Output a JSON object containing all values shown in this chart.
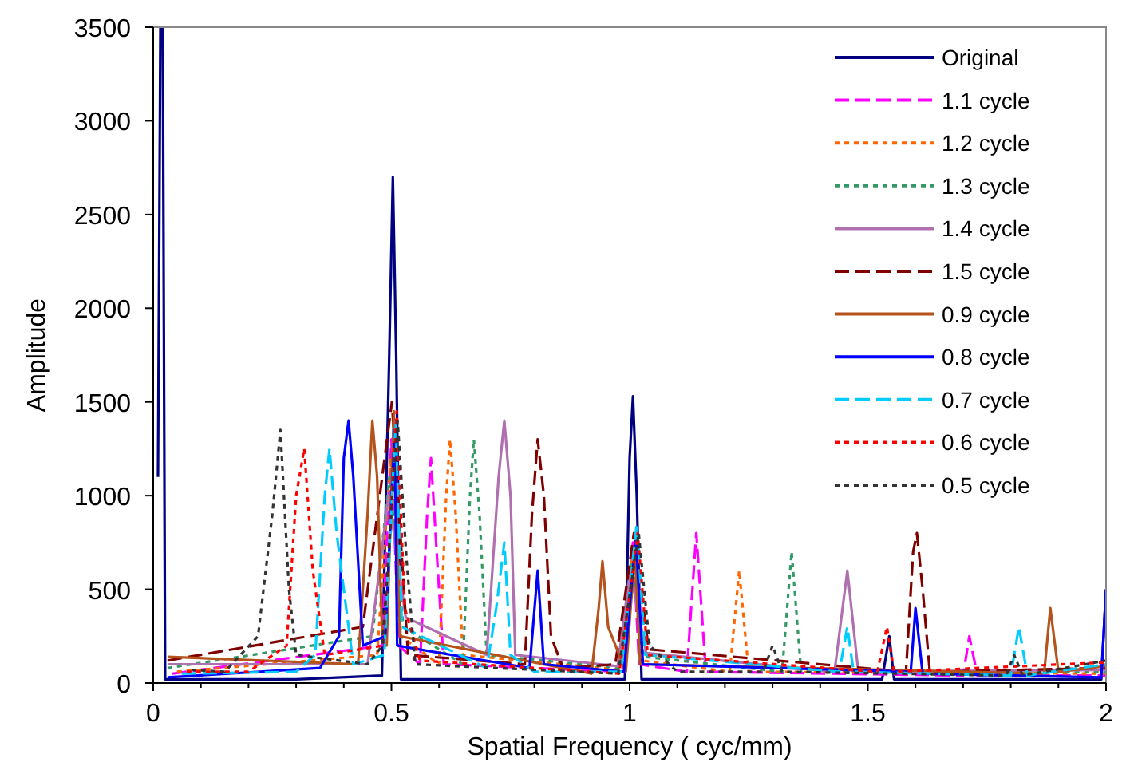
{
  "chart_data": {
    "type": "line",
    "xlabel": "Spatial Frequency ( cyc/mm)",
    "ylabel": "Amplitude",
    "xlim": [
      0,
      2
    ],
    "xticks": [
      0,
      {
        "value": 0.1,
        "label": null
      },
      {
        "value": 0.2,
        "label": null
      },
      {
        "value": 0.3,
        "label": null
      },
      {
        "value": 0.4,
        "label": null
      },
      0.5,
      {
        "value": 0.6,
        "label": null
      },
      {
        "value": 0.7,
        "label": null
      },
      {
        "value": 0.8,
        "label": null
      },
      {
        "value": 0.9,
        "label": null
      },
      1,
      {
        "value": 1.1,
        "label": null
      },
      {
        "value": 1.2,
        "label": null
      },
      {
        "value": 1.3,
        "label": null
      },
      {
        "value": 1.4,
        "label": null
      },
      1.5,
      {
        "value": 1.6,
        "label": null
      },
      {
        "value": 1.7,
        "label": null
      },
      {
        "value": 1.8,
        "label": null
      },
      {
        "value": 1.9,
        "label": null
      },
      2
    ],
    "ylim": [
      0,
      3500
    ],
    "yticks": [
      0,
      500,
      1000,
      1500,
      2000,
      2500,
      3000,
      3500
    ],
    "grid": false,
    "legend": "top right",
    "marker": "none",
    "series": [
      {
        "name": "Original",
        "color": "#000080",
        "line_style": "solid",
        "x": [
          0.01,
          0.015,
          0.02,
          0.025,
          0.3,
          0.48,
          0.495,
          0.503,
          0.51,
          0.52,
          0.99,
          1.0,
          1.007,
          1.015,
          1.025,
          1.53,
          1.545,
          1.555,
          1.99,
          2.0
        ],
        "values": [
          1100,
          3500,
          3500,
          20,
          20,
          40,
          1700,
          2700,
          1750,
          20,
          20,
          1200,
          1530,
          1000,
          20,
          20,
          250,
          20,
          20,
          500
        ]
      },
      {
        "name": "1.1 cycle",
        "color": "#ff00ff",
        "line_style": "dashed",
        "x": [
          0.04,
          0.48,
          0.5,
          0.515,
          0.56,
          0.575,
          0.583,
          0.595,
          0.61,
          0.99,
          1.007,
          1.02,
          1.12,
          1.14,
          1.16,
          1.7,
          1.713,
          1.73,
          2.0
        ],
        "values": [
          50,
          200,
          1300,
          200,
          100,
          900,
          1200,
          700,
          100,
          60,
          750,
          100,
          60,
          800,
          60,
          40,
          250,
          40,
          40
        ]
      },
      {
        "name": "1.2 cycle",
        "color": "#ff6600",
        "line_style": "dotted",
        "x": [
          0.05,
          0.47,
          0.498,
          0.52,
          0.6,
          0.615,
          0.623,
          0.635,
          0.65,
          0.985,
          1.005,
          1.025,
          1.21,
          1.23,
          1.25,
          2.0
        ],
        "values": [
          60,
          150,
          1200,
          250,
          100,
          1000,
          1300,
          900,
          150,
          70,
          700,
          120,
          60,
          600,
          60,
          50
        ]
      },
      {
        "name": "1.3 cycle",
        "color": "#339966",
        "line_style": "dotted",
        "x": [
          0.03,
          0.46,
          0.496,
          0.525,
          0.65,
          0.665,
          0.673,
          0.685,
          0.7,
          0.98,
          1.003,
          1.03,
          1.32,
          1.34,
          1.36,
          2.0
        ],
        "values": [
          80,
          250,
          1100,
          300,
          100,
          1000,
          1300,
          900,
          150,
          80,
          650,
          140,
          60,
          700,
          60,
          60
        ]
      },
      {
        "name": "1.4 cycle",
        "color": "#b070b0",
        "line_style": "solid",
        "x": [
          0.03,
          0.45,
          0.494,
          0.53,
          0.7,
          0.725,
          0.737,
          0.75,
          0.76,
          0.975,
          1.001,
          1.035,
          1.43,
          1.457,
          1.48,
          2.0
        ],
        "values": [
          100,
          100,
          1000,
          350,
          150,
          1100,
          1400,
          1000,
          150,
          90,
          600,
          160,
          60,
          600,
          60,
          70
        ]
      },
      {
        "name": "1.5 cycle",
        "color": "#800000",
        "line_style": "dashed",
        "x": [
          0.03,
          0.44,
          0.501,
          0.535,
          0.78,
          0.795,
          0.807,
          0.82,
          0.835,
          0.86,
          0.97,
          1.009,
          1.04,
          1.58,
          1.595,
          1.603,
          1.615,
          1.63,
          2.0
        ],
        "values": [
          120,
          300,
          1500,
          150,
          100,
          900,
          1300,
          1000,
          250,
          80,
          100,
          800,
          180,
          60,
          700,
          800,
          500,
          60,
          80
        ]
      },
      {
        "name": "0.9 cycle",
        "color": "#b5531c",
        "line_style": "solid",
        "x": [
          0.03,
          0.43,
          0.45,
          0.46,
          0.47,
          0.48,
          0.49,
          0.505,
          0.518,
          0.92,
          0.935,
          0.943,
          0.955,
          0.992,
          1.011,
          1.022,
          1.87,
          1.883,
          1.9,
          2.0
        ],
        "values": [
          140,
          100,
          900,
          1400,
          1100,
          300,
          200,
          1450,
          250,
          50,
          400,
          650,
          300,
          60,
          700,
          100,
          50,
          400,
          60,
          90
        ]
      },
      {
        "name": "0.8 cycle",
        "color": "#0000ff",
        "line_style": "solid",
        "x": [
          0.03,
          0.35,
          0.39,
          0.4,
          0.41,
          0.42,
          0.44,
          0.487,
          0.507,
          0.512,
          0.79,
          0.807,
          0.82,
          0.988,
          1.013,
          1.028,
          1.59,
          1.6,
          1.615,
          1.99,
          2.0
        ],
        "values": [
          30,
          80,
          250,
          1200,
          1400,
          1100,
          200,
          250,
          1350,
          200,
          80,
          600,
          100,
          60,
          780,
          100,
          60,
          400,
          50,
          30,
          500
        ]
      },
      {
        "name": "0.7 cycle",
        "color": "#00ccff",
        "line_style": "dashed",
        "x": [
          0.06,
          0.3,
          0.34,
          0.36,
          0.37,
          0.385,
          0.42,
          0.485,
          0.509,
          0.522,
          0.7,
          0.72,
          0.737,
          0.75,
          0.8,
          0.982,
          1.015,
          1.033,
          1.44,
          1.457,
          1.47,
          1.8,
          1.817,
          1.835,
          2.0
        ],
        "values": [
          50,
          60,
          150,
          1000,
          1250,
          800,
          100,
          150,
          1400,
          300,
          80,
          400,
          750,
          150,
          60,
          60,
          850,
          150,
          60,
          300,
          60,
          40,
          300,
          40,
          100
        ]
      },
      {
        "name": "0.6 cycle",
        "color": "#ff0000",
        "line_style": "dotted",
        "x": [
          0.07,
          0.2,
          0.28,
          0.3,
          0.317,
          0.335,
          0.36,
          0.483,
          0.511,
          0.528,
          0.56,
          0.978,
          1.017,
          1.038,
          1.52,
          1.54,
          1.555,
          2.0
        ],
        "values": [
          60,
          60,
          200,
          1000,
          1250,
          600,
          150,
          200,
          1450,
          400,
          120,
          50,
          800,
          150,
          60,
          300,
          60,
          110
        ]
      },
      {
        "name": "0.5 cycle",
        "color": "#333333",
        "line_style": "dotted",
        "x": [
          0.08,
          0.15,
          0.22,
          0.25,
          0.267,
          0.285,
          0.3,
          0.45,
          0.481,
          0.513,
          0.532,
          0.55,
          0.976,
          1.019,
          1.042,
          1.1,
          1.28,
          1.3,
          1.32,
          1.79,
          1.807,
          1.825,
          2.0
        ],
        "values": [
          70,
          60,
          250,
          900,
          1350,
          500,
          150,
          100,
          200,
          1400,
          650,
          100,
          50,
          800,
          200,
          60,
          60,
          200,
          60,
          40,
          150,
          40,
          120
        ]
      }
    ]
  }
}
